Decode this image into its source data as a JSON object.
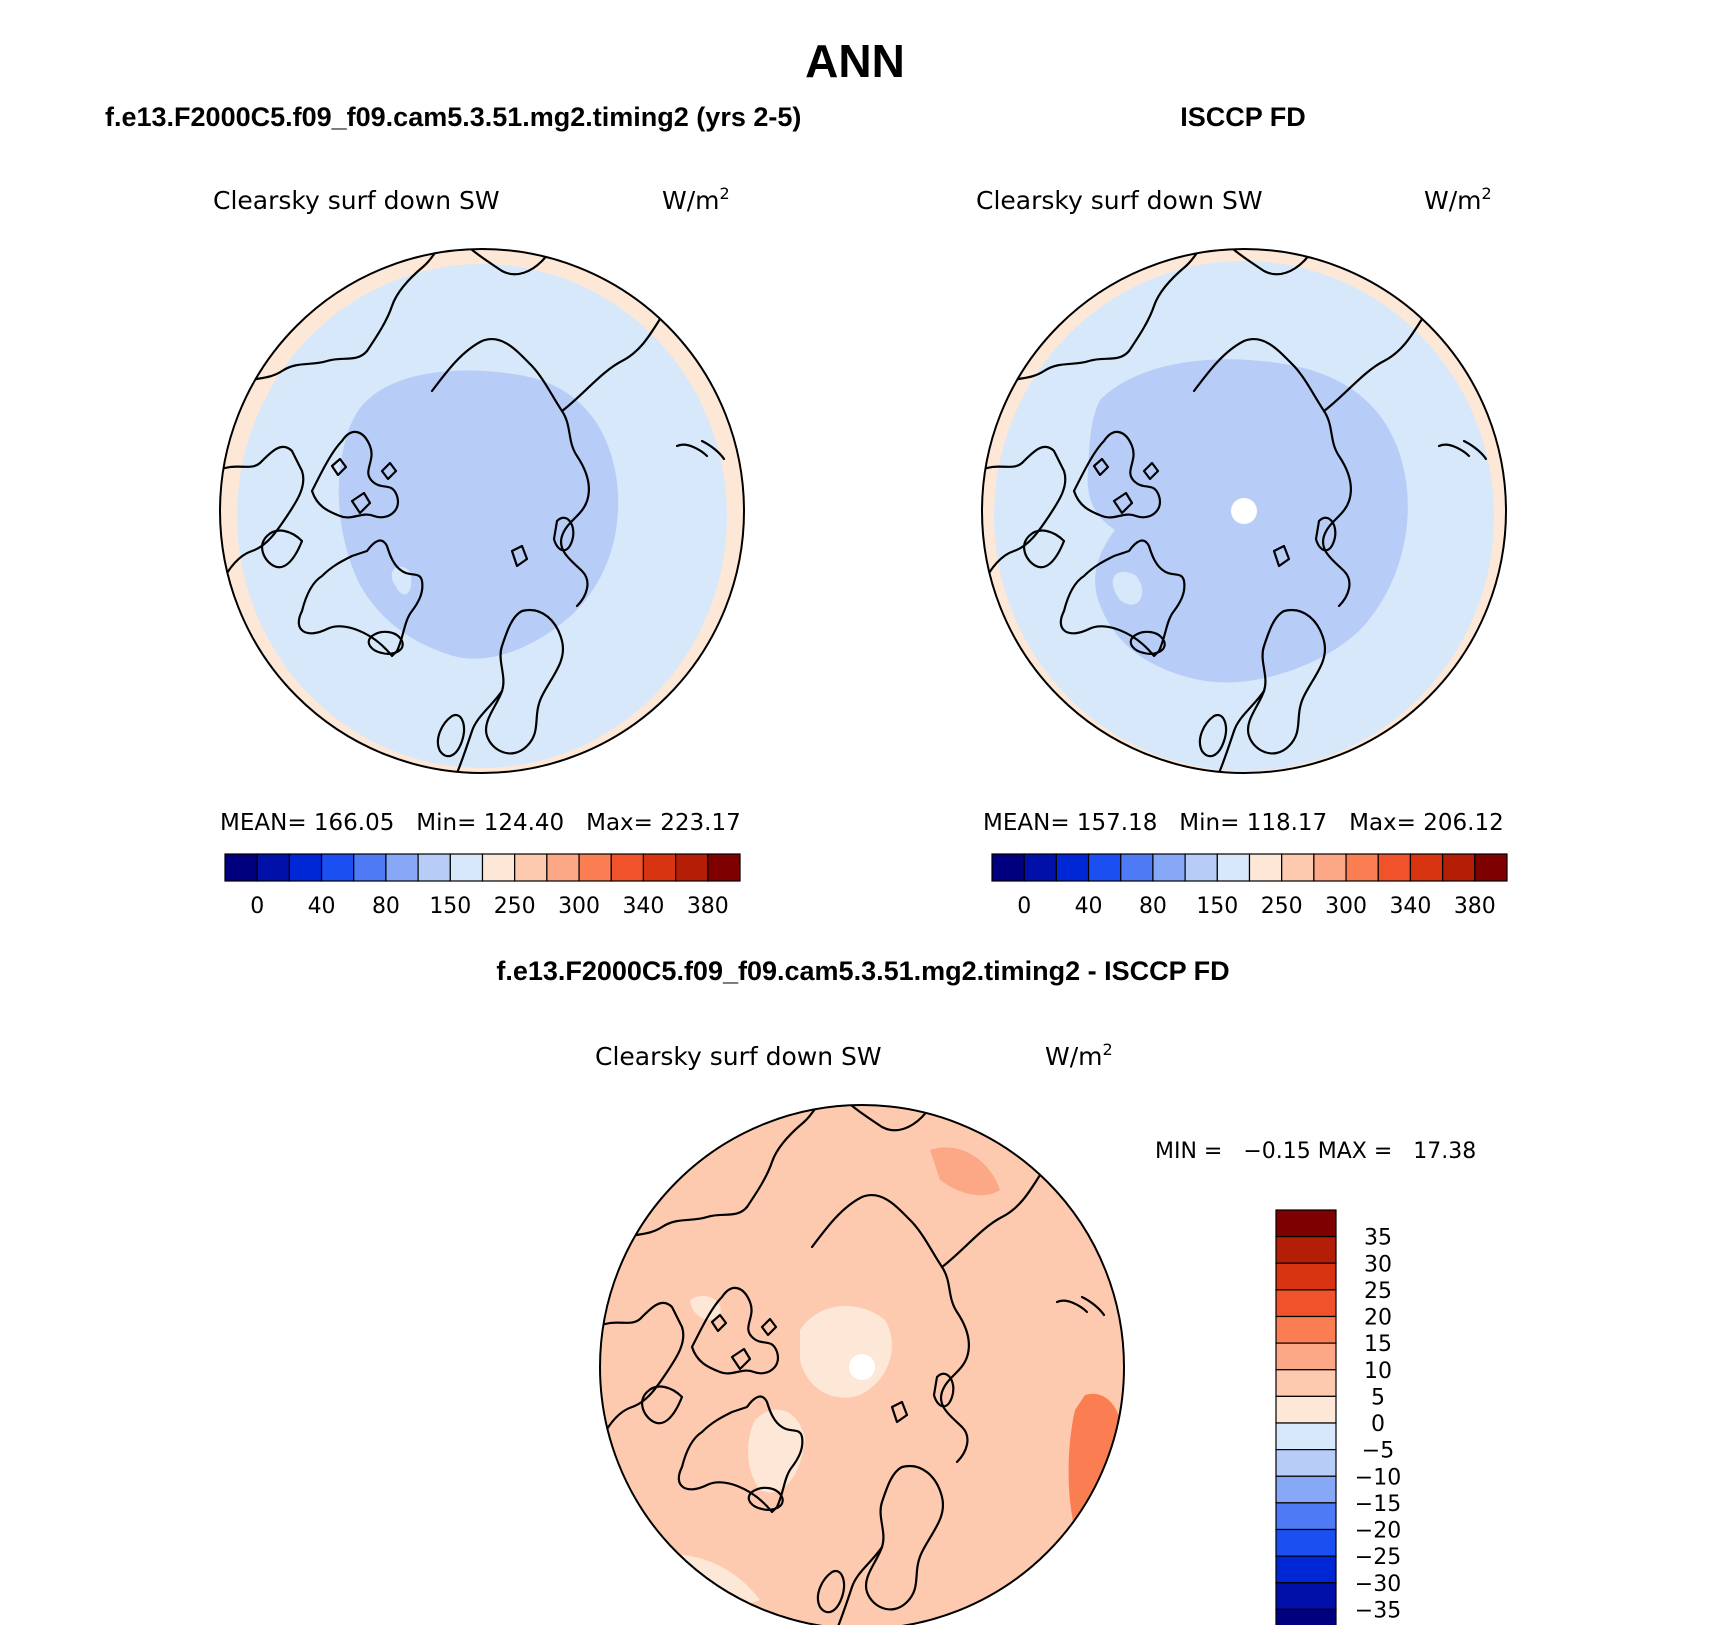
{
  "title": "ANN",
  "panels": {
    "model": {
      "header": "f.e13.F2000C5.f09_f09.cam5.3.51.mg2.timing2 (yrs 2-5)",
      "variable": "Clearsky surf down SW",
      "units_base": "W/m",
      "units_exp": "2",
      "stats": "MEAN= 166.05   Min= 124.40   Max= 223.17"
    },
    "obs": {
      "header": "ISCCP FD",
      "variable": "Clearsky surf down SW",
      "units_base": "W/m",
      "units_exp": "2",
      "stats": "MEAN= 157.18   Min= 118.17   Max= 206.12"
    },
    "diff": {
      "header": "f.e13.F2000C5.f09_f09.cam5.3.51.mg2.timing2 - ISCCP FD",
      "variable": "Clearsky surf down SW",
      "units_base": "W/m",
      "units_exp": "2",
      "stats": "MIN =   −0.15 MAX =   17.38"
    }
  },
  "colorbar_main": {
    "colors": [
      "#00007e",
      "#0010a8",
      "#0027d6",
      "#1c4ff2",
      "#4f7af5",
      "#86a8f6",
      "#b7cdf8",
      "#d7e8fb",
      "#fde7d6",
      "#fdcab0",
      "#fca785",
      "#fb7e52",
      "#f0532c",
      "#d93412",
      "#b41e07",
      "#7e0000"
    ],
    "labels": [
      "0",
      "40",
      "80",
      "150",
      "250",
      "300",
      "340",
      "380"
    ]
  },
  "colorbar_diff": {
    "colors": [
      "#7e0000",
      "#b41e07",
      "#d93412",
      "#f0532c",
      "#fb7e52",
      "#fca785",
      "#fdcab0",
      "#fde7d6",
      "#d7e8fb",
      "#b7cdf8",
      "#86a8f6",
      "#4f7af5",
      "#1c4ff2",
      "#0027d6",
      "#0010a8",
      "#00007e"
    ],
    "labels": [
      "35",
      "30",
      "25",
      "20",
      "15",
      "10",
      "5",
      "0",
      "−5",
      "−10",
      "−15",
      "−20",
      "−25",
      "−30",
      "−35"
    ]
  },
  "field_colors": {
    "outer_ring": "#fde7d6",
    "mid_band": "#d7e8fb",
    "core": "#b7cdf8",
    "diff_base": "#fdcab0",
    "diff_high": "#fca785",
    "diff_peak": "#fb7e52",
    "diff_low": "#fde7d6",
    "missing": "#ffffff"
  }
}
